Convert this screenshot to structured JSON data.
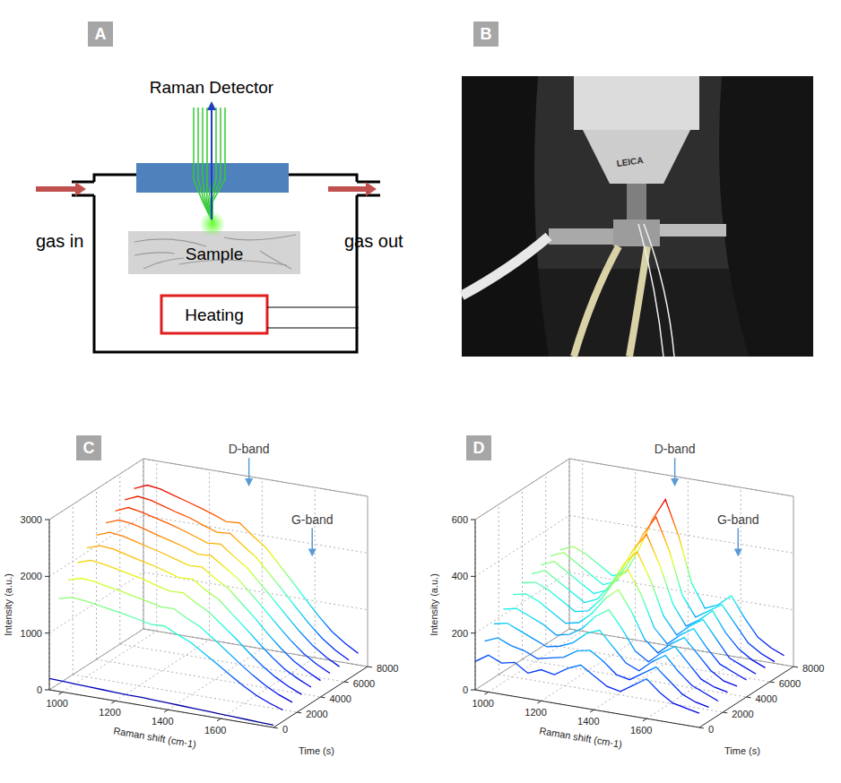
{
  "panels": [
    {
      "letter": "A"
    },
    {
      "letter": "B"
    },
    {
      "letter": "C"
    },
    {
      "letter": "D"
    }
  ],
  "diagram": {
    "detector": "Raman Detector",
    "sample": "Sample",
    "heating": "Heating",
    "gas_in": "gas in",
    "gas_out": "gas out"
  },
  "photo": {
    "label": "LEICA"
  },
  "chart_data": [
    {
      "type": "waterfall",
      "color": "jet",
      "grid": true,
      "x_label": "Raman shift (cm-1)",
      "y_label": "Intensity (a.u.)",
      "z_label": "Time (s)",
      "x": [
        950,
        1000,
        1050,
        1100,
        1150,
        1200,
        1250,
        1300,
        1350,
        1400,
        1450,
        1500,
        1550,
        1600,
        1650,
        1700,
        1750,
        1800
      ],
      "xlim": [
        950,
        1800
      ],
      "xticks": [
        1000,
        1200,
        1400,
        1600
      ],
      "ylim": [
        0,
        3000
      ],
      "yticks": [
        0,
        1000,
        2000,
        3000
      ],
      "zlim": [
        0,
        8000
      ],
      "zticks": [
        0,
        2000,
        4000,
        6000,
        8000
      ],
      "annotations": [
        {
          "text": "D-band",
          "x": 1350
        },
        {
          "text": "G-band",
          "x": 1590
        }
      ],
      "series": [
        {
          "z": 0,
          "values": [
            200,
            190,
            180,
            170,
            160,
            150,
            140,
            140,
            130,
            120,
            110,
            100,
            90,
            80,
            70,
            60,
            50,
            40
          ]
        },
        {
          "z": 800,
          "values": [
            1500,
            1560,
            1540,
            1500,
            1460,
            1420,
            1370,
            1320,
            1330,
            1220,
            1120,
            970,
            820,
            660,
            510,
            380,
            280,
            200
          ]
        },
        {
          "z": 1600,
          "values": [
            1720,
            1790,
            1770,
            1720,
            1680,
            1630,
            1580,
            1520,
            1530,
            1400,
            1290,
            1120,
            940,
            760,
            590,
            440,
            320,
            230
          ]
        },
        {
          "z": 2400,
          "values": [
            1920,
            2000,
            1970,
            1920,
            1870,
            1820,
            1750,
            1690,
            1700,
            1560,
            1430,
            1240,
            1050,
            840,
            650,
            490,
            360,
            260
          ]
        },
        {
          "z": 3200,
          "values": [
            2070,
            2150,
            2130,
            2070,
            2010,
            1960,
            1890,
            1820,
            1840,
            1680,
            1550,
            1340,
            1130,
            910,
            700,
            520,
            390,
            280
          ]
        },
        {
          "z": 4000,
          "values": [
            2190,
            2280,
            2250,
            2190,
            2130,
            2070,
            2000,
            1930,
            1940,
            1780,
            1640,
            1420,
            1200,
            960,
            740,
            550,
            410,
            290
          ]
        },
        {
          "z": 4800,
          "values": [
            2300,
            2390,
            2360,
            2300,
            2230,
            2170,
            2100,
            2020,
            2030,
            1870,
            1710,
            1480,
            1250,
            1010,
            780,
            580,
            430,
            310
          ]
        },
        {
          "z": 5600,
          "values": [
            2400,
            2500,
            2460,
            2400,
            2340,
            2270,
            2190,
            2110,
            2130,
            1950,
            1790,
            1550,
            1310,
            1060,
            820,
            610,
            450,
            320
          ]
        },
        {
          "z": 6400,
          "values": [
            2490,
            2590,
            2560,
            2490,
            2420,
            2360,
            2270,
            2190,
            2210,
            2030,
            1860,
            1610,
            1360,
            1100,
            850,
            630,
            460,
            330
          ]
        },
        {
          "z": 7200,
          "values": [
            2580,
            2680,
            2650,
            2580,
            2510,
            2440,
            2360,
            2270,
            2290,
            2100,
            1930,
            1670,
            1410,
            1140,
            880,
            650,
            480,
            340
          ]
        }
      ]
    },
    {
      "type": "waterfall",
      "color": "jet",
      "grid": true,
      "x_label": "Raman shift (cm-1)",
      "y_label": "Intensity (a.u.)",
      "z_label": "Time (s)",
      "x": [
        950,
        1000,
        1050,
        1100,
        1150,
        1200,
        1250,
        1300,
        1350,
        1400,
        1450,
        1500,
        1550,
        1600,
        1650,
        1700,
        1750,
        1800
      ],
      "xlim": [
        950,
        1800
      ],
      "xticks": [
        1000,
        1200,
        1400,
        1600
      ],
      "ylim": [
        0,
        600
      ],
      "yticks": [
        0,
        200,
        400,
        600
      ],
      "zlim": [
        0,
        8000
      ],
      "zticks": [
        0,
        2000,
        4000,
        6000,
        8000
      ],
      "annotations": [
        {
          "text": "D-band",
          "x": 1350
        },
        {
          "text": "G-band",
          "x": 1590
        }
      ],
      "series": [
        {
          "z": 0,
          "values": [
            100,
            130,
            110,
            120,
            90,
            110,
            100,
            130,
            150,
            120,
            90,
            80,
            110,
            140,
            100,
            70,
            60,
            50
          ]
        },
        {
          "z": 800,
          "values": [
            150,
            170,
            150,
            140,
            120,
            130,
            140,
            170,
            180,
            150,
            110,
            100,
            130,
            160,
            120,
            80,
            60,
            50
          ]
        },
        {
          "z": 1600,
          "values": [
            190,
            200,
            180,
            160,
            140,
            150,
            170,
            210,
            230,
            180,
            130,
            110,
            150,
            180,
            130,
            90,
            70,
            50
          ]
        },
        {
          "z": 2400,
          "values": [
            220,
            230,
            210,
            190,
            160,
            170,
            200,
            250,
            280,
            220,
            150,
            120,
            160,
            190,
            140,
            90,
            70,
            60
          ]
        },
        {
          "z": 3200,
          "values": [
            250,
            260,
            240,
            210,
            180,
            190,
            230,
            290,
            330,
            260,
            170,
            130,
            170,
            200,
            150,
            100,
            70,
            60
          ]
        },
        {
          "z": 4000,
          "values": [
            270,
            280,
            260,
            230,
            200,
            210,
            260,
            330,
            380,
            300,
            190,
            140,
            180,
            210,
            150,
            100,
            80,
            60
          ]
        },
        {
          "z": 4800,
          "values": [
            280,
            300,
            270,
            240,
            210,
            230,
            290,
            370,
            420,
            330,
            210,
            150,
            190,
            220,
            160,
            100,
            80,
            60
          ]
        },
        {
          "z": 5600,
          "values": [
            290,
            310,
            280,
            250,
            220,
            240,
            310,
            400,
            460,
            360,
            230,
            160,
            190,
            230,
            160,
            110,
            80,
            60
          ]
        },
        {
          "z": 6400,
          "values": [
            300,
            320,
            290,
            260,
            230,
            250,
            330,
            430,
            500,
            390,
            240,
            170,
            200,
            230,
            170,
            110,
            80,
            60
          ]
        },
        {
          "z": 7200,
          "values": [
            300,
            320,
            300,
            270,
            240,
            260,
            350,
            460,
            540,
            420,
            260,
            180,
            200,
            240,
            170,
            110,
            80,
            60
          ]
        }
      ]
    }
  ]
}
